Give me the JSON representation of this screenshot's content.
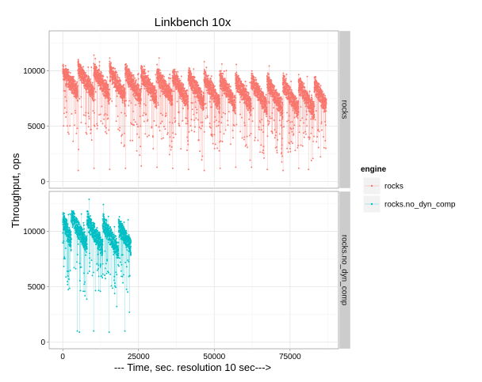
{
  "chart_data": {
    "type": "scatter",
    "title": "Linkbench 10x",
    "xlabel": "--- Time, sec. resolution 10 sec--->",
    "ylabel": "Throughput, ops",
    "xlim": [
      -4500,
      91000
    ],
    "x_ticks": [
      0,
      25000,
      50000,
      75000
    ],
    "x_tick_labels": [
      "0",
      "25000",
      "50000",
      "75000"
    ],
    "y_ticks": [
      0,
      5000,
      10000
    ],
    "y_tick_labels": [
      "0",
      "5000",
      "10000"
    ],
    "grid": true,
    "legend": {
      "title": "engine",
      "position": "right"
    },
    "facets": [
      {
        "label": "rocks",
        "series": "rocks",
        "color": "#F8766D",
        "ylim": [
          -600,
          13600
        ],
        "x_max": 87000,
        "period": 5200,
        "first_peak": 5000,
        "peak_start": 11000,
        "peak_end": 9400,
        "base_start": 8800,
        "base_end": 6900,
        "dips": [
          {
            "x": 5100,
            "y": 1000
          },
          {
            "x": 5200,
            "y": 2900
          },
          {
            "x": 10300,
            "y": 1200
          },
          {
            "x": 15500,
            "y": 1100
          },
          {
            "x": 20700,
            "y": 1200
          },
          {
            "x": 25900,
            "y": 1400
          },
          {
            "x": 31100,
            "y": 1300
          },
          {
            "x": 36300,
            "y": 1200
          },
          {
            "x": 41500,
            "y": 1100
          },
          {
            "x": 46700,
            "y": 1000
          },
          {
            "x": 51900,
            "y": 1200
          },
          {
            "x": 57100,
            "y": 1300
          },
          {
            "x": 62300,
            "y": 1300
          },
          {
            "x": 67500,
            "y": 1100
          },
          {
            "x": 72700,
            "y": 1000
          },
          {
            "x": 77900,
            "y": 1200
          },
          {
            "x": 81100,
            "y": 1100
          },
          {
            "x": 86800,
            "y": 3000
          }
        ]
      },
      {
        "label": "rocks.no_dyn_comp",
        "series": "rocks.no_dyn_comp",
        "color": "#00BFC4",
        "ylim": [
          -600,
          13600
        ],
        "x_max": 22500,
        "period": 5200,
        "first_peak": 2800,
        "peak_start": 12200,
        "peak_end": 11000,
        "base_start": 9800,
        "base_end": 8800,
        "dips": [
          {
            "x": 4800,
            "y": 1000
          },
          {
            "x": 5500,
            "y": 900
          },
          {
            "x": 10200,
            "y": 1000
          },
          {
            "x": 15300,
            "y": 900
          },
          {
            "x": 20500,
            "y": 1000
          },
          {
            "x": 22000,
            "y": 2700
          }
        ]
      }
    ],
    "series": [
      {
        "name": "rocks",
        "color": "#F8766D"
      },
      {
        "name": "rocks.no_dyn_comp",
        "color": "#00BFC4"
      }
    ]
  }
}
